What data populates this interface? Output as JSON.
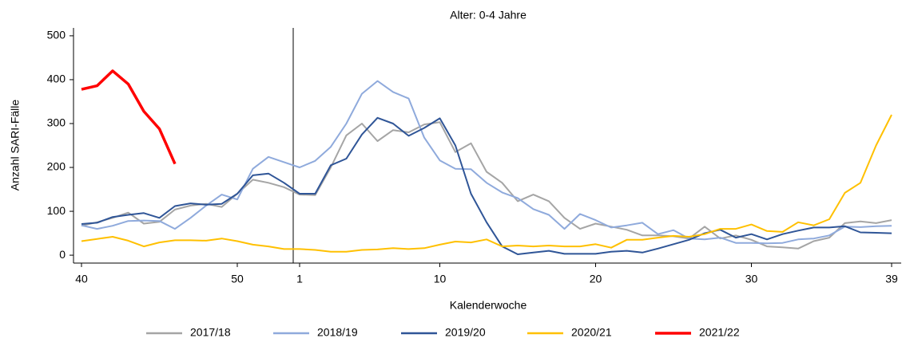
{
  "chart_data": {
    "type": "line",
    "title": "Alter: 0-4 Jahre",
    "x_label": "Kalenderwoche",
    "y_label": "Anzahl SARI-Fälle",
    "categories": [
      "40",
      null,
      null,
      null,
      null,
      null,
      null,
      null,
      null,
      null,
      "50",
      null,
      null,
      null,
      "1",
      null,
      null,
      null,
      null,
      null,
      null,
      null,
      null,
      "10",
      null,
      null,
      null,
      null,
      null,
      null,
      null,
      null,
      null,
      "20",
      null,
      null,
      null,
      null,
      null,
      null,
      null,
      null,
      null,
      "30",
      null,
      null,
      null,
      null,
      null,
      null,
      null,
      null,
      "39"
    ],
    "ylim": [
      -18,
      518
    ],
    "yticks": [
      0,
      100,
      200,
      300,
      400,
      500
    ],
    "grid": false,
    "legend": "bottom",
    "series": [
      {
        "name": "2017/18",
        "color": "#a5a5a5",
        "values": [
          67,
          75,
          85,
          97,
          72,
          76,
          104,
          113,
          117,
          110,
          140,
          172,
          165,
          155,
          138,
          137,
          200,
          273,
          300,
          260,
          285,
          280,
          298,
          303,
          235,
          255,
          190,
          165,
          123,
          138,
          123,
          85,
          60,
          72,
          65,
          58,
          45,
          45,
          43,
          38,
          65,
          38,
          45,
          35,
          20,
          18,
          15,
          32,
          40,
          73,
          77,
          73,
          80
        ]
      },
      {
        "name": "2018/19",
        "color": "#8faadc",
        "values": [
          68,
          60,
          67,
          78,
          79,
          78,
          60,
          85,
          113,
          138,
          127,
          197,
          224,
          212,
          200,
          215,
          247,
          300,
          368,
          397,
          372,
          357,
          268,
          216,
          197,
          196,
          165,
          143,
          130,
          105,
          92,
          60,
          94,
          80,
          63,
          68,
          74,
          48,
          57,
          38,
          36,
          40,
          28,
          28,
          27,
          28,
          36,
          38,
          45,
          65,
          64,
          66,
          67
        ]
      },
      {
        "name": "2019/20",
        "color": "#2f5597",
        "values": [
          71,
          74,
          87,
          92,
          96,
          85,
          112,
          118,
          115,
          117,
          140,
          182,
          186,
          165,
          140,
          140,
          205,
          220,
          275,
          313,
          300,
          272,
          290,
          312,
          250,
          140,
          75,
          20,
          2,
          6,
          10,
          3,
          3,
          3,
          8,
          10,
          6,
          15,
          25,
          35,
          50,
          58,
          40,
          48,
          36,
          48,
          56,
          63,
          63,
          66,
          52,
          51,
          50
        ]
      },
      {
        "name": "2020/21",
        "color": "#ffc000",
        "values": [
          32,
          37,
          42,
          33,
          20,
          29,
          34,
          34,
          33,
          38,
          32,
          24,
          20,
          14,
          14,
          12,
          8,
          8,
          12,
          13,
          16,
          14,
          16,
          24,
          31,
          29,
          36,
          20,
          22,
          20,
          22,
          20,
          20,
          25,
          17,
          35,
          35,
          40,
          44,
          42,
          48,
          60,
          60,
          70,
          55,
          53,
          75,
          68,
          82,
          142,
          165,
          250,
          320
        ]
      },
      {
        "name": "2021/22",
        "color": "#ff0000",
        "values": [
          378,
          386,
          420,
          390,
          328,
          288,
          208,
          null,
          null,
          null,
          null,
          null,
          null,
          null,
          null,
          null,
          null,
          null,
          null,
          null,
          null,
          null,
          null,
          null,
          null,
          null,
          null,
          null,
          null,
          null,
          null,
          null,
          null,
          null,
          null,
          null,
          null,
          null,
          null,
          null,
          null,
          null,
          null,
          null,
          null,
          null,
          null,
          null,
          null,
          null,
          null,
          null,
          null
        ]
      }
    ]
  }
}
